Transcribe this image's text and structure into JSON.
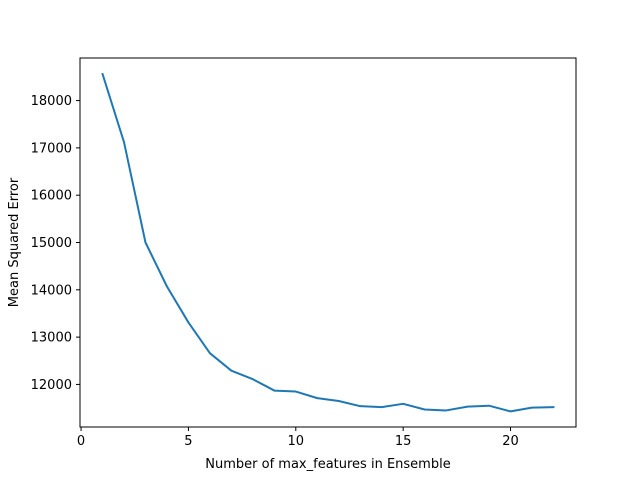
{
  "chart_data": {
    "type": "line",
    "title": "",
    "xlabel": "Number of max_features in Ensemble",
    "ylabel": "Mean Squared Error",
    "xlim": [
      -0.05,
      23.05
    ],
    "ylim": [
      11100,
      18900
    ],
    "xticks": [
      0,
      5,
      10,
      15,
      20
    ],
    "yticks": [
      12000,
      13000,
      14000,
      15000,
      16000,
      17000,
      18000
    ],
    "grid": false,
    "series": [
      {
        "color": "#1f77b4",
        "x": [
          1,
          2,
          3,
          4,
          5,
          6,
          7,
          8,
          9,
          10,
          11,
          12,
          13,
          14,
          15,
          16,
          17,
          18,
          19,
          20,
          21,
          22
        ],
        "y": [
          18560,
          17120,
          15000,
          14070,
          13310,
          12660,
          12290,
          12110,
          11870,
          11850,
          11710,
          11650,
          11540,
          11520,
          11590,
          11470,
          11450,
          11530,
          11550,
          11430,
          11510,
          11520
        ]
      }
    ]
  }
}
